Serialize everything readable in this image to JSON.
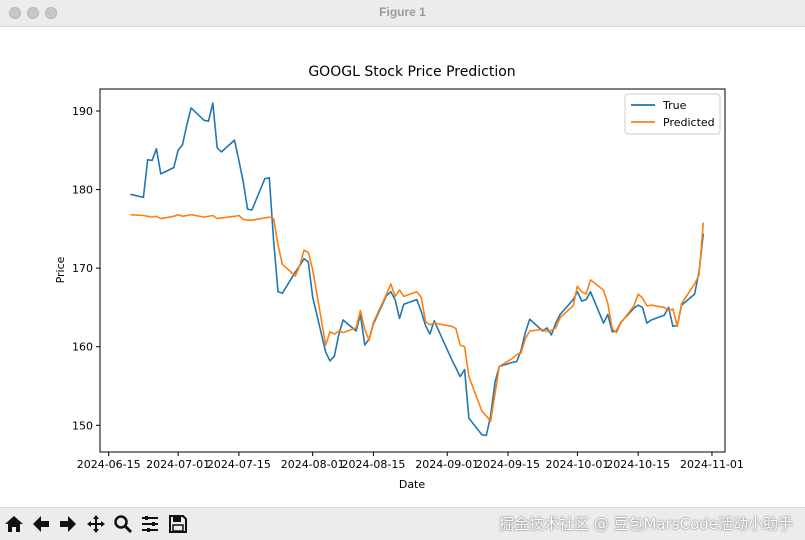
{
  "window": {
    "title": "Figure 1"
  },
  "watermark": "掘金技术社区 @ 豆包MarsCode活动小助手",
  "toolbar": {
    "buttons": [
      "home-icon",
      "back-arrow-icon",
      "forward-arrow-icon",
      "pan-icon",
      "zoom-icon",
      "configure-subplots-icon",
      "save-icon"
    ]
  },
  "chart_data": {
    "type": "line",
    "title": "GOOGL Stock Price Prediction",
    "xlabel": "Date",
    "ylabel": "Price",
    "x_axis_type": "date",
    "xlim": [
      "2024-06-13",
      "2024-11-04"
    ],
    "ylim": [
      146.6,
      192.8
    ],
    "x_ticks": [
      "2024-06-15",
      "2024-07-01",
      "2024-07-15",
      "2024-08-01",
      "2024-08-15",
      "2024-09-01",
      "2024-09-15",
      "2024-10-01",
      "2024-10-15",
      "2024-11-01"
    ],
    "x_tick_labels": [
      "2024-06-15",
      "2024-07-01",
      "2024-07-15",
      "2024-08-01",
      "2024-08-15",
      "2024-09-01",
      "2024-09-15",
      "2024-10-01",
      "2024-10-15",
      "2024-11-01"
    ],
    "y_ticks": [
      150,
      160,
      170,
      180,
      190
    ],
    "legend": {
      "position": "upper right",
      "entries": [
        "True",
        "Predicted"
      ]
    },
    "grid": false,
    "series": [
      {
        "name": "True",
        "color": "#1f77b4",
        "points": [
          [
            "2024-06-20",
            179.4
          ],
          [
            "2024-06-23",
            179.0
          ],
          [
            "2024-06-24",
            183.8
          ],
          [
            "2024-06-25",
            183.7
          ],
          [
            "2024-06-26",
            185.2
          ],
          [
            "2024-06-27",
            182.0
          ],
          [
            "2024-06-30",
            182.8
          ],
          [
            "2024-07-01",
            185.0
          ],
          [
            "2024-07-02",
            185.7
          ],
          [
            "2024-07-03",
            188.2
          ],
          [
            "2024-07-04",
            190.4
          ],
          [
            "2024-07-07",
            188.8
          ],
          [
            "2024-07-08",
            188.7
          ],
          [
            "2024-07-09",
            191.0
          ],
          [
            "2024-07-10",
            185.3
          ],
          [
            "2024-07-11",
            184.8
          ],
          [
            "2024-07-14",
            186.3
          ],
          [
            "2024-07-15",
            183.7
          ],
          [
            "2024-07-16",
            181.0
          ],
          [
            "2024-07-17",
            177.5
          ],
          [
            "2024-07-18",
            177.4
          ],
          [
            "2024-07-21",
            181.4
          ],
          [
            "2024-07-22",
            181.5
          ],
          [
            "2024-07-23",
            173.5
          ],
          [
            "2024-07-24",
            167.0
          ],
          [
            "2024-07-25",
            166.8
          ],
          [
            "2024-07-28",
            169.5
          ],
          [
            "2024-07-29",
            170.3
          ],
          [
            "2024-07-30",
            171.2
          ],
          [
            "2024-07-31",
            170.8
          ],
          [
            "2024-08-01",
            166.3
          ],
          [
            "2024-08-04",
            159.3
          ],
          [
            "2024-08-05",
            158.2
          ],
          [
            "2024-08-06",
            158.8
          ],
          [
            "2024-08-07",
            161.5
          ],
          [
            "2024-08-08",
            163.4
          ],
          [
            "2024-08-11",
            162.0
          ],
          [
            "2024-08-12",
            164.1
          ],
          [
            "2024-08-13",
            160.2
          ],
          [
            "2024-08-14",
            161.0
          ],
          [
            "2024-08-15",
            162.9
          ],
          [
            "2024-08-18",
            166.5
          ],
          [
            "2024-08-19",
            167.0
          ],
          [
            "2024-08-20",
            166.0
          ],
          [
            "2024-08-21",
            163.6
          ],
          [
            "2024-08-22",
            165.4
          ],
          [
            "2024-08-25",
            166.0
          ],
          [
            "2024-08-26",
            164.5
          ],
          [
            "2024-08-27",
            162.7
          ],
          [
            "2024-08-28",
            161.6
          ],
          [
            "2024-08-29",
            163.3
          ],
          [
            "2024-09-02",
            158.4
          ],
          [
            "2024-09-03",
            157.3
          ],
          [
            "2024-09-04",
            156.2
          ],
          [
            "2024-09-05",
            157.1
          ],
          [
            "2024-09-06",
            150.9
          ],
          [
            "2024-09-09",
            148.8
          ],
          [
            "2024-09-10",
            148.7
          ],
          [
            "2024-09-11",
            151.2
          ],
          [
            "2024-09-12",
            155.5
          ],
          [
            "2024-09-13",
            157.5
          ],
          [
            "2024-09-16",
            158.0
          ],
          [
            "2024-09-17",
            158.1
          ],
          [
            "2024-09-18",
            159.5
          ],
          [
            "2024-09-19",
            161.8
          ],
          [
            "2024-09-20",
            163.5
          ],
          [
            "2024-09-23",
            162.0
          ],
          [
            "2024-09-24",
            162.4
          ],
          [
            "2024-09-25",
            161.5
          ],
          [
            "2024-09-26",
            163.0
          ],
          [
            "2024-09-27",
            164.1
          ],
          [
            "2024-09-30",
            166.0
          ],
          [
            "2024-10-01",
            167.0
          ],
          [
            "2024-10-02",
            165.8
          ],
          [
            "2024-10-03",
            166.0
          ],
          [
            "2024-10-04",
            167.0
          ],
          [
            "2024-10-07",
            163.0
          ],
          [
            "2024-10-08",
            164.1
          ],
          [
            "2024-10-09",
            161.9
          ],
          [
            "2024-10-10",
            162.0
          ],
          [
            "2024-10-11",
            163.1
          ],
          [
            "2024-10-14",
            164.9
          ],
          [
            "2024-10-15",
            165.3
          ],
          [
            "2024-10-16",
            165.0
          ],
          [
            "2024-10-17",
            163.0
          ],
          [
            "2024-10-18",
            163.4
          ],
          [
            "2024-10-21",
            164.0
          ],
          [
            "2024-10-22",
            165.0
          ],
          [
            "2024-10-23",
            162.6
          ],
          [
            "2024-10-24",
            162.7
          ],
          [
            "2024-10-25",
            165.3
          ],
          [
            "2024-10-28",
            166.7
          ],
          [
            "2024-10-29",
            169.5
          ],
          [
            "2024-10-30",
            174.4
          ]
        ]
      },
      {
        "name": "Predicted",
        "color": "#ff7f0e",
        "points": [
          [
            "2024-06-20",
            176.8
          ],
          [
            "2024-06-23",
            176.7
          ],
          [
            "2024-06-24",
            176.6
          ],
          [
            "2024-06-25",
            176.5
          ],
          [
            "2024-06-26",
            176.6
          ],
          [
            "2024-06-27",
            176.3
          ],
          [
            "2024-06-30",
            176.6
          ],
          [
            "2024-07-01",
            176.8
          ],
          [
            "2024-07-02",
            176.6
          ],
          [
            "2024-07-03",
            176.7
          ],
          [
            "2024-07-04",
            176.8
          ],
          [
            "2024-07-07",
            176.5
          ],
          [
            "2024-07-08",
            176.6
          ],
          [
            "2024-07-09",
            176.7
          ],
          [
            "2024-07-10",
            176.3
          ],
          [
            "2024-07-11",
            176.4
          ],
          [
            "2024-07-14",
            176.6
          ],
          [
            "2024-07-15",
            176.7
          ],
          [
            "2024-07-16",
            176.2
          ],
          [
            "2024-07-17",
            176.1
          ],
          [
            "2024-07-18",
            176.1
          ],
          [
            "2024-07-21",
            176.4
          ],
          [
            "2024-07-22",
            176.5
          ],
          [
            "2024-07-23",
            176.3
          ],
          [
            "2024-07-24",
            173.0
          ],
          [
            "2024-07-25",
            170.5
          ],
          [
            "2024-07-28",
            169.0
          ],
          [
            "2024-07-29",
            170.3
          ],
          [
            "2024-07-30",
            172.3
          ],
          [
            "2024-07-31",
            172.0
          ],
          [
            "2024-08-01",
            169.8
          ],
          [
            "2024-08-04",
            160.2
          ],
          [
            "2024-08-05",
            161.9
          ],
          [
            "2024-08-06",
            161.6
          ],
          [
            "2024-08-07",
            162.0
          ],
          [
            "2024-08-08",
            161.8
          ],
          [
            "2024-08-11",
            162.4
          ],
          [
            "2024-08-12",
            164.6
          ],
          [
            "2024-08-13",
            162.2
          ],
          [
            "2024-08-14",
            160.8
          ],
          [
            "2024-08-15",
            163.1
          ],
          [
            "2024-08-18",
            166.7
          ],
          [
            "2024-08-19",
            168.0
          ],
          [
            "2024-08-20",
            166.4
          ],
          [
            "2024-08-21",
            167.2
          ],
          [
            "2024-08-22",
            166.4
          ],
          [
            "2024-08-25",
            167.0
          ],
          [
            "2024-08-26",
            166.3
          ],
          [
            "2024-08-27",
            163.2
          ],
          [
            "2024-08-28",
            162.8
          ],
          [
            "2024-08-29",
            163.0
          ],
          [
            "2024-09-02",
            162.6
          ],
          [
            "2024-09-03",
            162.3
          ],
          [
            "2024-09-04",
            160.2
          ],
          [
            "2024-09-05",
            160.0
          ],
          [
            "2024-09-06",
            156.2
          ],
          [
            "2024-09-09",
            151.8
          ],
          [
            "2024-09-10",
            151.2
          ],
          [
            "2024-09-11",
            150.5
          ],
          [
            "2024-09-12",
            154.0
          ],
          [
            "2024-09-13",
            157.5
          ],
          [
            "2024-09-16",
            158.5
          ],
          [
            "2024-09-17",
            159.0
          ],
          [
            "2024-09-18",
            159.2
          ],
          [
            "2024-09-19",
            161.0
          ],
          [
            "2024-09-20",
            162.0
          ],
          [
            "2024-09-23",
            162.2
          ],
          [
            "2024-09-24",
            161.9
          ],
          [
            "2024-09-25",
            162.1
          ],
          [
            "2024-09-26",
            162.4
          ],
          [
            "2024-09-27",
            163.7
          ],
          [
            "2024-09-30",
            165.2
          ],
          [
            "2024-10-01",
            167.7
          ],
          [
            "2024-10-02",
            167.0
          ],
          [
            "2024-10-03",
            166.7
          ],
          [
            "2024-10-04",
            168.5
          ],
          [
            "2024-10-07",
            167.2
          ],
          [
            "2024-10-08",
            165.5
          ],
          [
            "2024-10-09",
            162.3
          ],
          [
            "2024-10-10",
            161.8
          ],
          [
            "2024-10-11",
            163.0
          ],
          [
            "2024-10-14",
            165.2
          ],
          [
            "2024-10-15",
            166.7
          ],
          [
            "2024-10-16",
            166.2
          ],
          [
            "2024-10-17",
            165.2
          ],
          [
            "2024-10-18",
            165.3
          ],
          [
            "2024-10-21",
            165.0
          ],
          [
            "2024-10-22",
            164.6
          ],
          [
            "2024-10-23",
            164.8
          ],
          [
            "2024-10-24",
            162.6
          ],
          [
            "2024-10-25",
            165.5
          ],
          [
            "2024-10-28",
            168.0
          ],
          [
            "2024-10-29",
            169.1
          ],
          [
            "2024-10-30",
            175.8
          ]
        ]
      }
    ]
  }
}
